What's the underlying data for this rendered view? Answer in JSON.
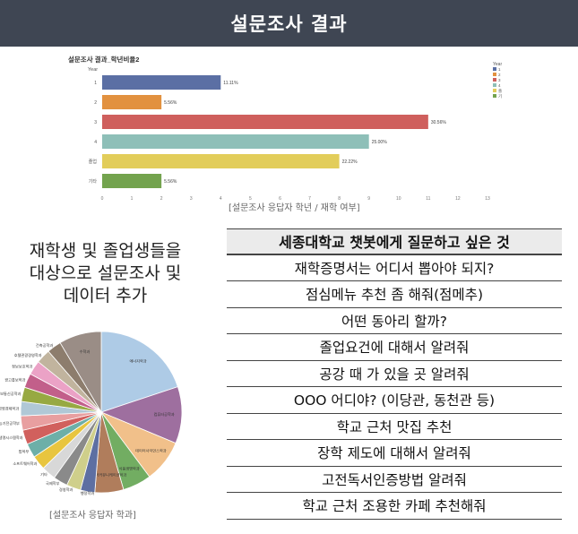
{
  "header": {
    "title": "설문조사 결과"
  },
  "bar_caption": "[설문조사 응답자 학년 / 재학 여부]",
  "pie_caption": "[설문조사 응답자 학과]",
  "left_heading": {
    "line1": "재학생 및 졸업생들을",
    "line2": "대상으로 설문조사 및",
    "line3": "데이터 추가"
  },
  "qa": {
    "header": "세종대학교 챗봇에게 질문하고 싶은 것",
    "items": [
      "재학증명서는 어디서 뽑아야 되지?",
      "점심메뉴 추천 좀 해줘(점메추)",
      "어떤 동아리 할까?",
      "졸업요건에 대해서 알려줘",
      "공강 때 가 있을 곳 알려줘",
      "OOO 어디야? (이당관, 동천관 등)",
      "학교 근처 맛집 추천",
      "장학 제도에 대해서 알려줘",
      "고전독서인증방법 알려줘",
      "학교 근처 조용한 카페 추천해줘"
    ]
  },
  "chart_data": [
    {
      "type": "bar",
      "orientation": "horizontal",
      "title": "설문조사 결과_학년비율2",
      "xlabel": "Count",
      "ylabel": "Year",
      "categories": [
        "1",
        "2",
        "3",
        "4",
        "졸업",
        "기타"
      ],
      "values": [
        4,
        2,
        11,
        9,
        8,
        2
      ],
      "data_labels": [
        "11.11%",
        "5.56%",
        "30.56%",
        "25.00%",
        "22.22%",
        "5.56%"
      ],
      "colors": [
        "#5b6fa4",
        "#e2913f",
        "#cf5f5d",
        "#8ebfb8",
        "#e2cd5a",
        "#73a34e"
      ],
      "xlim": [
        0,
        13
      ],
      "xticks": [
        0,
        1,
        2,
        3,
        4,
        5,
        6,
        7,
        8,
        9,
        10,
        11,
        12,
        13
      ],
      "legend": {
        "title": "Year",
        "position": "right",
        "entries": [
          "1",
          "2",
          "3",
          "4",
          "졸업",
          "기타"
        ]
      },
      "grid": false
    },
    {
      "type": "pie",
      "labels": [
        "에너지학과",
        "컴퓨터공학과",
        "데이터사이언스학과",
        "식품생명학과",
        "미디어커뮤니케이션학과",
        "행정학과",
        "경영학과",
        "국제학부",
        "기타",
        "소프트웨어학과",
        "법학부",
        "생명시스템학과",
        "지능기전공학부",
        "경영경제학과",
        "전자정보통신공학과",
        "광고홍보학과",
        "정보보호학과",
        "호텔관광경영학과",
        "건축공학과",
        "수학과"
      ],
      "values": [
        19.4,
        11.1,
        8.3,
        5.6,
        5.6,
        2.8,
        2.8,
        2.8,
        2.8,
        2.8,
        2.8,
        2.8,
        2.8,
        2.8,
        2.8,
        2.8,
        2.8,
        2.8,
        2.8,
        8.3
      ],
      "colors": [
        "#aecbe6",
        "#9e6f9f",
        "#f1c08a",
        "#72ad62",
        "#b07d5c",
        "#5d6fa2",
        "#cfcf8b",
        "#8a8a8a",
        "#d8d8d8",
        "#e8c53f",
        "#6dafa8",
        "#d1605d",
        "#e89fa0",
        "#b0c8d6",
        "#97a942",
        "#c25f8a",
        "#eba2c6",
        "#c1b49e",
        "#8d7d6d",
        "#9a8d86"
      ]
    }
  ]
}
